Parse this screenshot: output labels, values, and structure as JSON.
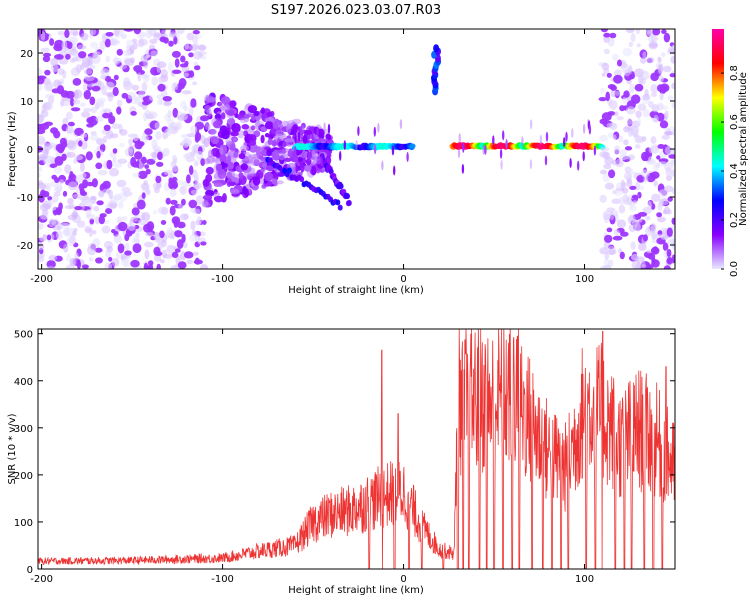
{
  "title": "S197.2026.023.03.07.R03",
  "chart_data": [
    {
      "type": "heatmap",
      "name": "spectrogram",
      "xlabel": "Height of straight line (km)",
      "ylabel": "Frequency (Hz)",
      "xlim": [
        -202,
        150
      ],
      "ylim": [
        -25,
        25
      ],
      "xticks": [
        -200,
        -100,
        0,
        100
      ],
      "yticks": [
        -20,
        -10,
        0,
        10,
        20
      ],
      "colorbar": {
        "label": "Normalized spectral amplitude",
        "range": [
          0.0,
          0.98
        ],
        "ticks": [
          0.0,
          0.2,
          0.4,
          0.6,
          0.8
        ],
        "colormap": [
          "#e8e8ff",
          "#8800ff",
          "#0000ff",
          "#00ffff",
          "#00ff00",
          "#ffff00",
          "#ff0000",
          "#ff00aa"
        ]
      },
      "features": [
        {
          "kind": "noise",
          "x_range": [
            -202,
            -110
          ],
          "freq_range": [
            -25,
            25
          ],
          "amplitude": 0.1
        },
        {
          "kind": "diffuse_band",
          "x_range": [
            -110,
            -40
          ],
          "freq_center": 0,
          "freq_halfwidth": 12,
          "amplitude": 0.15
        },
        {
          "kind": "descending_streak",
          "x": [
            -75,
            -35
          ],
          "freq": [
            -2,
            -12
          ],
          "amplitude": 0.25
        },
        {
          "kind": "descending_streak",
          "x": [
            -45,
            -30
          ],
          "freq": [
            -2,
            -11
          ],
          "amplitude": 0.2
        },
        {
          "kind": "line",
          "x_range": [
            -60,
            5
          ],
          "freq": 0.5,
          "amplitude": 0.45
        },
        {
          "kind": "spike",
          "x": 18,
          "freq_range": [
            12,
            21
          ],
          "amplitude": 0.3
        },
        {
          "kind": "line",
          "x_range": [
            27,
            110
          ],
          "freq": 0.6,
          "amplitude": 0.95
        },
        {
          "kind": "noise",
          "x_range": [
            110,
            150
          ],
          "freq_range": [
            -25,
            25
          ],
          "amplitude": 0.1
        }
      ]
    },
    {
      "type": "line",
      "name": "snr",
      "xlabel": "Height of straight line (km)",
      "ylabel": "SNR (10 * v/v)",
      "xlim": [
        -202,
        150
      ],
      "ylim": [
        0,
        510
      ],
      "xticks": [
        -200,
        -100,
        0,
        100
      ],
      "yticks": [
        0,
        100,
        200,
        300,
        400,
        500
      ],
      "series": [
        {
          "name": "SNR",
          "color": "#ee3333",
          "envelope_x": [
            -202,
            -150,
            -100,
            -75,
            -60,
            -55,
            -50,
            -40,
            -30,
            -20,
            -10,
            0,
            10,
            20,
            28,
            30,
            40,
            50,
            60,
            70,
            80,
            90,
            100,
            110,
            120,
            130,
            140,
            150
          ],
          "envelope_y": [
            20,
            22,
            28,
            50,
            60,
            90,
            120,
            140,
            150,
            170,
            190,
            200,
            110,
            50,
            40,
            430,
            440,
            430,
            460,
            380,
            300,
            260,
            420,
            400,
            320,
            360,
            330,
            260
          ],
          "peaks": [
            {
              "x": -12,
              "y": 465
            },
            {
              "x": -3,
              "y": 330
            },
            {
              "x": 63,
              "y": 495
            },
            {
              "x": 110,
              "y": 505
            },
            {
              "x": 145,
              "y": 430
            }
          ],
          "dropouts_x": [
            -19,
            -12,
            -5,
            3,
            10,
            22,
            30,
            33,
            36,
            42,
            46,
            50,
            55,
            60,
            64,
            71,
            77,
            82,
            87,
            91,
            101,
            106,
            110,
            117,
            122,
            126,
            133,
            138,
            143
          ]
        }
      ]
    }
  ]
}
